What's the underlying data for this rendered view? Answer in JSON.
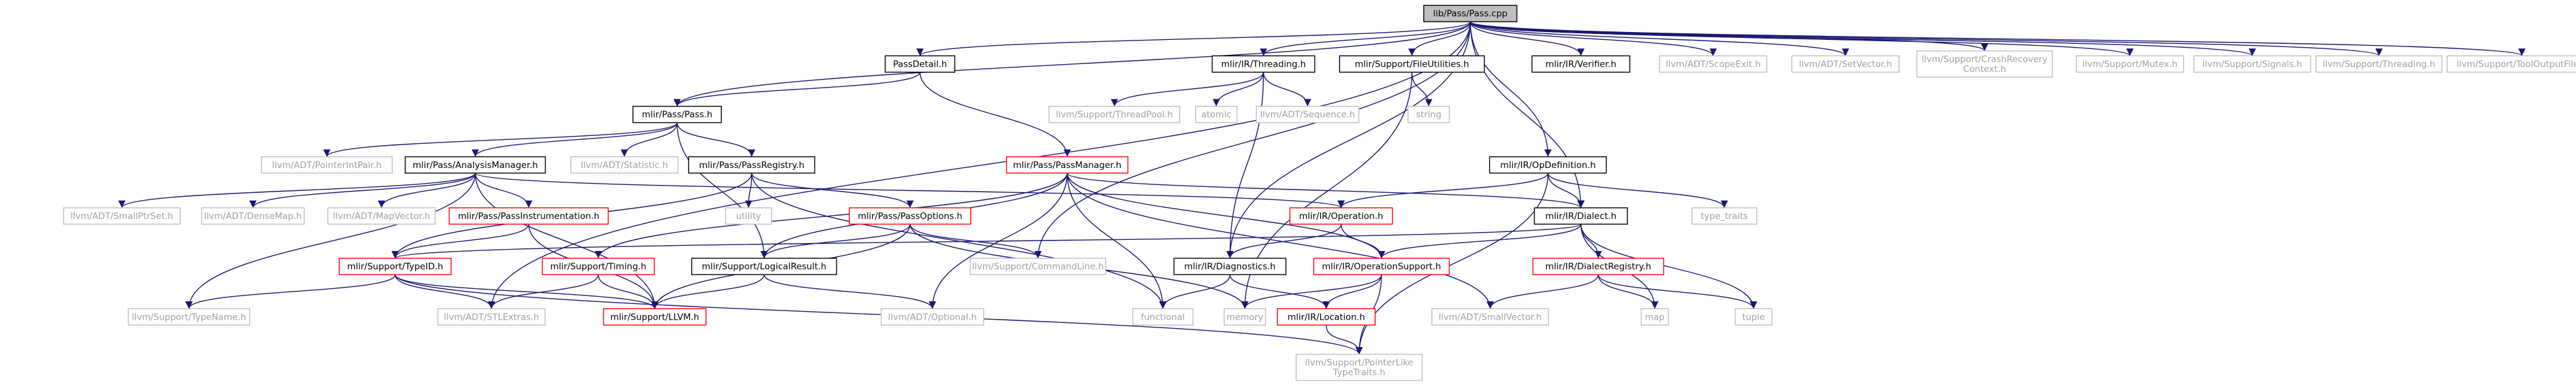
{
  "title": "lib/Pass/Pass.cpp",
  "colors": {
    "edge": "#191970",
    "node_border_normal": "#000000",
    "node_border_external": "#bfbfbf",
    "node_border_incomplete": "#ff0000",
    "node_fill_root": "#bfbfbf",
    "node_fill": "#ffffff",
    "text_normal": "#000000",
    "text_external": "#a0a0a0"
  },
  "nodes": [
    {
      "id": "pass_cpp",
      "lines": [
        "lib/Pass/Pass.cpp"
      ],
      "kind": "root"
    },
    {
      "id": "pass_detail",
      "lines": [
        "PassDetail.h"
      ],
      "kind": "normal"
    },
    {
      "id": "mlir_ir_threading",
      "lines": [
        "mlir/IR/Threading.h"
      ],
      "kind": "normal"
    },
    {
      "id": "mlir_support_fileutilities",
      "lines": [
        "mlir/Support/FileUtilities.h"
      ],
      "kind": "normal"
    },
    {
      "id": "mlir_ir_verifier",
      "lines": [
        "mlir/IR/Verifier.h"
      ],
      "kind": "normal"
    },
    {
      "id": "llvm_adt_scopeexit",
      "lines": [
        "llvm/ADT/ScopeExit.h"
      ],
      "kind": "external"
    },
    {
      "id": "llvm_adt_setvector",
      "lines": [
        "llvm/ADT/SetVector.h"
      ],
      "kind": "external"
    },
    {
      "id": "llvm_support_crashrecovery",
      "lines": [
        "llvm/Support/CrashRecovery",
        "Context.h"
      ],
      "kind": "external"
    },
    {
      "id": "llvm_support_mutex",
      "lines": [
        "llvm/Support/Mutex.h"
      ],
      "kind": "external"
    },
    {
      "id": "llvm_support_signals",
      "lines": [
        "llvm/Support/Signals.h"
      ],
      "kind": "external"
    },
    {
      "id": "llvm_support_threading",
      "lines": [
        "llvm/Support/Threading.h"
      ],
      "kind": "external"
    },
    {
      "id": "llvm_support_tooloutputfile",
      "lines": [
        "llvm/Support/ToolOutputFile.h"
      ],
      "kind": "external"
    },
    {
      "id": "mlir_pass_pass",
      "lines": [
        "mlir/Pass/Pass.h"
      ],
      "kind": "normal"
    },
    {
      "id": "llvm_support_threadpool",
      "lines": [
        "llvm/Support/ThreadPool.h"
      ],
      "kind": "external"
    },
    {
      "id": "atomic",
      "lines": [
        "atomic"
      ],
      "kind": "external"
    },
    {
      "id": "llvm_adt_sequence",
      "lines": [
        "llvm/ADT/Sequence.h"
      ],
      "kind": "external"
    },
    {
      "id": "string",
      "lines": [
        "string"
      ],
      "kind": "external"
    },
    {
      "id": "llvm_adt_pointerintpair",
      "lines": [
        "llvm/ADT/PointerIntPair.h"
      ],
      "kind": "external"
    },
    {
      "id": "mlir_pass_analysismanager",
      "lines": [
        "mlir/Pass/AnalysisManager.h"
      ],
      "kind": "normal"
    },
    {
      "id": "llvm_adt_statistic",
      "lines": [
        "llvm/ADT/Statistic.h"
      ],
      "kind": "external"
    },
    {
      "id": "mlir_pass_passregistry",
      "lines": [
        "mlir/Pass/PassRegistry.h"
      ],
      "kind": "normal"
    },
    {
      "id": "mlir_pass_passmanager",
      "lines": [
        "mlir/Pass/PassManager.h"
      ],
      "kind": "incomplete"
    },
    {
      "id": "mlir_ir_opdefinition",
      "lines": [
        "mlir/IR/OpDefinition.h"
      ],
      "kind": "normal"
    },
    {
      "id": "llvm_adt_smallptrset",
      "lines": [
        "llvm/ADT/SmallPtrSet.h"
      ],
      "kind": "external"
    },
    {
      "id": "llvm_adt_densemap",
      "lines": [
        "llvm/ADT/DenseMap.h"
      ],
      "kind": "external"
    },
    {
      "id": "llvm_adt_mapvector",
      "lines": [
        "llvm/ADT/MapVector.h"
      ],
      "kind": "external"
    },
    {
      "id": "mlir_pass_passinstrumentation",
      "lines": [
        "mlir/Pass/PassInstrumentation.h"
      ],
      "kind": "incomplete"
    },
    {
      "id": "utility",
      "lines": [
        "utility"
      ],
      "kind": "external"
    },
    {
      "id": "mlir_pass_passoptions",
      "lines": [
        "mlir/Pass/PassOptions.h"
      ],
      "kind": "incomplete"
    },
    {
      "id": "mlir_ir_operation",
      "lines": [
        "mlir/IR/Operation.h"
      ],
      "kind": "incomplete"
    },
    {
      "id": "mlir_ir_dialect",
      "lines": [
        "mlir/IR/Dialect.h"
      ],
      "kind": "normal"
    },
    {
      "id": "type_traits",
      "lines": [
        "type_traits"
      ],
      "kind": "external"
    },
    {
      "id": "mlir_support_typeid",
      "lines": [
        "mlir/Support/TypeID.h"
      ],
      "kind": "incomplete"
    },
    {
      "id": "mlir_support_timing",
      "lines": [
        "mlir/Support/Timing.h"
      ],
      "kind": "incomplete"
    },
    {
      "id": "mlir_support_logicalresult",
      "lines": [
        "mlir/Support/LogicalResult.h"
      ],
      "kind": "normal"
    },
    {
      "id": "llvm_support_commandline",
      "lines": [
        "llvm/Support/CommandLine.h"
      ],
      "kind": "external"
    },
    {
      "id": "mlir_ir_diagnostics",
      "lines": [
        "mlir/IR/Diagnostics.h"
      ],
      "kind": "normal"
    },
    {
      "id": "mlir_ir_operationsupport",
      "lines": [
        "mlir/IR/OperationSupport.h"
      ],
      "kind": "incomplete"
    },
    {
      "id": "mlir_ir_dialectregistry",
      "lines": [
        "mlir/IR/DialectRegistry.h"
      ],
      "kind": "incomplete"
    },
    {
      "id": "map",
      "lines": [
        "map"
      ],
      "kind": "external"
    },
    {
      "id": "tuple",
      "lines": [
        "tuple"
      ],
      "kind": "external"
    },
    {
      "id": "llvm_support_typename",
      "lines": [
        "llvm/Support/TypeName.h"
      ],
      "kind": "external"
    },
    {
      "id": "llvm_adt_stlextras",
      "lines": [
        "llvm/ADT/STLExtras.h"
      ],
      "kind": "external"
    },
    {
      "id": "mlir_support_llvm",
      "lines": [
        "mlir/Support/LLVM.h"
      ],
      "kind": "incomplete"
    },
    {
      "id": "llvm_adt_optional",
      "lines": [
        "llvm/ADT/Optional.h"
      ],
      "kind": "external"
    },
    {
      "id": "functional",
      "lines": [
        "functional"
      ],
      "kind": "external"
    },
    {
      "id": "memory",
      "lines": [
        "memory"
      ],
      "kind": "external"
    },
    {
      "id": "mlir_ir_location",
      "lines": [
        "mlir/IR/Location.h"
      ],
      "kind": "incomplete"
    },
    {
      "id": "llvm_adt_smallvector",
      "lines": [
        "llvm/ADT/SmallVector.h"
      ],
      "kind": "external"
    },
    {
      "id": "llvm_support_pointerliketypetraits",
      "lines": [
        "llvm/Support/PointerLike",
        "TypeTraits.h"
      ],
      "kind": "external"
    }
  ],
  "edges": [
    [
      "pass_cpp",
      "pass_detail"
    ],
    [
      "pass_cpp",
      "mlir_ir_threading"
    ],
    [
      "pass_cpp",
      "mlir_support_fileutilities"
    ],
    [
      "pass_cpp",
      "mlir_ir_verifier"
    ],
    [
      "pass_cpp",
      "llvm_adt_scopeexit"
    ],
    [
      "pass_cpp",
      "llvm_adt_setvector"
    ],
    [
      "pass_cpp",
      "llvm_support_crashrecovery"
    ],
    [
      "pass_cpp",
      "llvm_support_mutex"
    ],
    [
      "pass_cpp",
      "llvm_support_signals"
    ],
    [
      "pass_cpp",
      "llvm_support_threading"
    ],
    [
      "pass_cpp",
      "llvm_support_tooloutputfile"
    ],
    [
      "pass_cpp",
      "mlir_pass_pass"
    ],
    [
      "pass_cpp",
      "mlir_ir_opdefinition"
    ],
    [
      "pass_cpp",
      "mlir_ir_dialect"
    ],
    [
      "pass_cpp",
      "mlir_ir_diagnostics"
    ],
    [
      "pass_cpp",
      "llvm_support_commandline"
    ],
    [
      "pass_cpp",
      "llvm_adt_stlextras"
    ],
    [
      "pass_detail",
      "mlir_pass_pass"
    ],
    [
      "pass_detail",
      "mlir_pass_passmanager"
    ],
    [
      "mlir_ir_threading",
      "llvm_support_threadpool"
    ],
    [
      "mlir_ir_threading",
      "atomic"
    ],
    [
      "mlir_ir_threading",
      "llvm_adt_sequence"
    ],
    [
      "mlir_ir_threading",
      "mlir_ir_diagnostics"
    ],
    [
      "mlir_support_fileutilities",
      "string"
    ],
    [
      "mlir_support_fileutilities",
      "memory"
    ],
    [
      "mlir_pass_pass",
      "llvm_adt_pointerintpair"
    ],
    [
      "mlir_pass_pass",
      "mlir_pass_analysismanager"
    ],
    [
      "mlir_pass_pass",
      "llvm_adt_statistic"
    ],
    [
      "mlir_pass_pass",
      "mlir_pass_passregistry"
    ],
    [
      "mlir_pass_pass",
      "mlir_support_logicalresult"
    ],
    [
      "mlir_pass_analysismanager",
      "llvm_adt_smallptrset"
    ],
    [
      "mlir_pass_analysismanager",
      "llvm_adt_densemap"
    ],
    [
      "mlir_pass_analysismanager",
      "llvm_adt_mapvector"
    ],
    [
      "mlir_pass_analysismanager",
      "mlir_pass_passinstrumentation"
    ],
    [
      "mlir_pass_analysismanager",
      "mlir_ir_operation"
    ],
    [
      "mlir_pass_analysismanager",
      "mlir_support_llvm"
    ],
    [
      "mlir_pass_analysismanager",
      "llvm_support_typename"
    ],
    [
      "mlir_pass_passinstrumentation",
      "mlir_support_typeid"
    ],
    [
      "mlir_pass_passinstrumentation",
      "mlir_support_llvm"
    ],
    [
      "mlir_pass_passregistry",
      "utility"
    ],
    [
      "mlir_pass_passregistry",
      "mlir_pass_passoptions"
    ],
    [
      "mlir_pass_passregistry",
      "mlir_support_typeid"
    ],
    [
      "mlir_pass_passregistry",
      "functional"
    ],
    [
      "mlir_pass_passmanager",
      "mlir_ir_dialect"
    ],
    [
      "mlir_pass_passmanager",
      "mlir_ir_operationsupport"
    ],
    [
      "mlir_pass_passmanager",
      "mlir_support_timing"
    ],
    [
      "mlir_pass_passmanager",
      "mlir_support_logicalresult"
    ],
    [
      "mlir_pass_passmanager",
      "llvm_adt_optional"
    ],
    [
      "mlir_pass_passmanager",
      "functional"
    ],
    [
      "mlir_pass_passmanager",
      "llvm_adt_smallvector"
    ],
    [
      "mlir_pass_passoptions",
      "mlir_support_logicalresult"
    ],
    [
      "mlir_pass_passoptions",
      "llvm_support_commandline"
    ],
    [
      "mlir_pass_passoptions",
      "mlir_support_llvm"
    ],
    [
      "mlir_pass_passoptions",
      "memory"
    ],
    [
      "mlir_ir_opdefinition",
      "mlir_ir_operation"
    ],
    [
      "mlir_ir_opdefinition",
      "mlir_ir_dialect"
    ],
    [
      "mlir_ir_opdefinition",
      "type_traits"
    ],
    [
      "mlir_ir_opdefinition",
      "llvm_support_pointerliketypetraits"
    ],
    [
      "mlir_ir_operation",
      "mlir_ir_diagnostics"
    ],
    [
      "mlir_ir_operation",
      "mlir_ir_operationsupport"
    ],
    [
      "mlir_ir_dialect",
      "mlir_ir_operationsupport"
    ],
    [
      "mlir_ir_dialect",
      "mlir_ir_dialectregistry"
    ],
    [
      "mlir_ir_dialect",
      "map"
    ],
    [
      "mlir_ir_dialect",
      "tuple"
    ],
    [
      "mlir_ir_dialect",
      "mlir_support_typeid"
    ],
    [
      "mlir_support_typeid",
      "llvm_support_typename"
    ],
    [
      "mlir_support_typeid",
      "llvm_adt_stlextras"
    ],
    [
      "mlir_support_typeid",
      "mlir_support_llvm"
    ],
    [
      "mlir_support_typeid",
      "llvm_support_pointerliketypetraits"
    ],
    [
      "mlir_support_timing",
      "mlir_support_llvm"
    ],
    [
      "mlir_support_timing",
      "llvm_adt_stlextras"
    ],
    [
      "mlir_support_logicalresult",
      "mlir_support_llvm"
    ],
    [
      "mlir_support_logicalresult",
      "llvm_adt_optional"
    ],
    [
      "mlir_ir_diagnostics",
      "mlir_ir_location"
    ],
    [
      "mlir_ir_diagnostics",
      "functional"
    ],
    [
      "mlir_ir_operationsupport",
      "memory"
    ],
    [
      "mlir_ir_operationsupport",
      "mlir_ir_location"
    ],
    [
      "mlir_ir_operationsupport",
      "llvm_support_pointerliketypetraits"
    ],
    [
      "mlir_ir_dialectregistry",
      "map"
    ],
    [
      "mlir_ir_dialectregistry",
      "tuple"
    ],
    [
      "mlir_ir_dialectregistry",
      "llvm_adt_smallvector"
    ],
    [
      "mlir_ir_location",
      "llvm_support_pointerliketypetraits"
    ]
  ]
}
